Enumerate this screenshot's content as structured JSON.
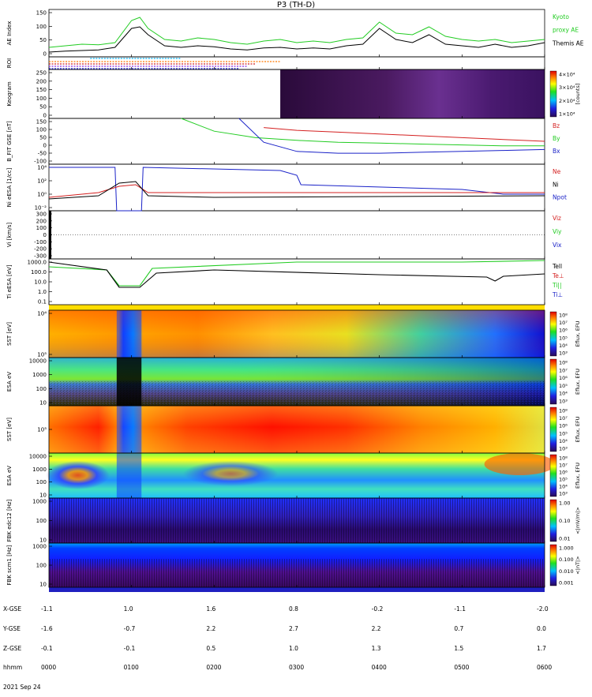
{
  "title": "P3 (TH-D)",
  "colors": {
    "kyoto": "#22cc22",
    "themis": "#000000",
    "red": "#d42020",
    "green": "#22cc22",
    "blue": "#1a22c8"
  },
  "panels": [
    {
      "id": "ae",
      "ylabel": "AE Index",
      "ticks": [
        "150",
        "100",
        "50",
        "0"
      ],
      "legend": [
        {
          "text": "Kyoto",
          "color": "#22cc22"
        },
        {
          "text": "proxy AE",
          "color": "#22cc22"
        },
        {
          "text": "Themis AE",
          "color": "#000000"
        }
      ]
    },
    {
      "id": "roi",
      "ylabel": "ROI",
      "ticks": [],
      "legend": []
    },
    {
      "id": "keogram",
      "ylabel": "Keogram",
      "ticks": [
        "250",
        "200",
        "150",
        "100",
        "50",
        "0"
      ],
      "legend": [],
      "colorbar": {
        "label": "[counts]",
        "ticks": [
          "4×10⁴",
          "3×10⁴",
          "2×10⁴",
          "1×10⁴"
        ]
      }
    },
    {
      "id": "bfield",
      "ylabel": "B_FIT GSE [nT]",
      "ticks": [
        "150",
        "100",
        "50",
        "0",
        "-50",
        "-100"
      ],
      "legend": [
        {
          "text": "Bz",
          "color": "#d42020"
        },
        {
          "text": "By",
          "color": "#22cc22"
        },
        {
          "text": "Bx",
          "color": "#1a22c8"
        }
      ]
    },
    {
      "id": "density",
      "ylabel": "Ni eESA [1/cc]",
      "ticks": [
        "10⁴",
        "10²",
        "10⁰",
        "10⁻²"
      ],
      "legend": [
        {
          "text": "Ne",
          "color": "#d42020"
        },
        {
          "text": "Ni",
          "color": "#000000"
        },
        {
          "text": "Npot",
          "color": "#1a22c8"
        }
      ]
    },
    {
      "id": "velocity",
      "ylabel": "Vi [km/s]",
      "ticks": [
        "300",
        "200",
        "100",
        "0",
        "-100",
        "-200",
        "-300"
      ],
      "legend": [
        {
          "text": "Viz",
          "color": "#d42020"
        },
        {
          "text": "Viy",
          "color": "#22cc22"
        },
        {
          "text": "Vix",
          "color": "#1a22c8"
        }
      ]
    },
    {
      "id": "temp",
      "ylabel": "Ti eESA [eV]",
      "ticks": [
        "1000.0",
        "100.0",
        "10.0",
        "1.0",
        "0.1"
      ],
      "legend": [
        {
          "text": "Tell",
          "color": "#000000"
        },
        {
          "text": "Te⊥",
          "color": "#d42020"
        },
        {
          "text": "Ti||",
          "color": "#22cc22"
        },
        {
          "text": "Ti⊥",
          "color": "#1a22c8"
        }
      ]
    },
    {
      "id": "sst_e",
      "ylabel": "SST [eV]",
      "ticks": [
        "10⁴",
        "10⁵"
      ],
      "legend": [],
      "colorbar": {
        "label": "Eflux, EFU",
        "ticks": [
          "10⁸",
          "10⁷",
          "10⁶",
          "10⁵",
          "10⁴",
          "10³"
        ]
      }
    },
    {
      "id": "esa_e",
      "ylabel": "ESA eV",
      "ticks": [
        "10000",
        "1000",
        "100",
        "10"
      ],
      "legend": [],
      "colorbar": {
        "label": "Eflux, EFU",
        "ticks": [
          "10⁸",
          "10⁷",
          "10⁶",
          "10⁵",
          "10⁴",
          "10³"
        ]
      }
    },
    {
      "id": "sst_i",
      "ylabel": "SST [eV]",
      "ticks": [
        "10⁵"
      ],
      "legend": [],
      "colorbar": {
        "label": "Eflux, EFU",
        "ticks": [
          "10⁸",
          "10⁷",
          "10⁶",
          "10⁵",
          "10⁴",
          "10³"
        ]
      }
    },
    {
      "id": "esa_i",
      "ylabel": "ESA eV",
      "ticks": [
        "10000",
        "1000",
        "100",
        "10"
      ],
      "legend": [],
      "colorbar": {
        "label": "Eflux, EFU",
        "ticks": [
          "10⁸",
          "10⁷",
          "10⁶",
          "10⁵",
          "10⁴",
          "10³"
        ]
      }
    },
    {
      "id": "fbk_e",
      "ylabel": "FBK edc12 [Hz]",
      "ticks": [
        "1000",
        "100",
        "10"
      ],
      "legend": [],
      "colorbar": {
        "label": "<|mV/m|>",
        "ticks": [
          "1.00",
          "0.10",
          "0.01"
        ]
      }
    },
    {
      "id": "fbk_b",
      "ylabel": "FBK scm1 [Hz]",
      "ticks": [
        "1000",
        "100",
        "10"
      ],
      "legend": [],
      "colorbar": {
        "label": "<|nT|>",
        "ticks": [
          "1.000",
          "0.100",
          "0.010",
          "0.001"
        ]
      }
    }
  ],
  "footer": {
    "rows": [
      {
        "label": "X-GSE",
        "values": [
          "-1.1",
          "1.0",
          "1.6",
          "0.8",
          "-0.2",
          "-1.1",
          "-2.0"
        ]
      },
      {
        "label": "Y-GSE",
        "values": [
          "-1.6",
          "-0.7",
          "2.2",
          "2.7",
          "2.2",
          "0.7",
          "0.0"
        ]
      },
      {
        "label": "Z-GSE",
        "values": [
          "-0.1",
          "-0.1",
          "0.5",
          "1.0",
          "1.3",
          "1.5",
          "1.7"
        ]
      },
      {
        "label": "hhmm",
        "values": [
          "0000",
          "0100",
          "0200",
          "0300",
          "0400",
          "0500",
          "0600"
        ]
      }
    ],
    "date": "2021 Sep 24"
  },
  "chart_data": {
    "type": "line",
    "x_label": "hhmm",
    "x_range": [
      "0000",
      "0600"
    ],
    "x_ticks": [
      "0000",
      "0100",
      "0200",
      "0300",
      "0400",
      "0500",
      "0600"
    ],
    "series": [
      {
        "name": "Kyoto proxy AE",
        "panel": "ae",
        "x": [
          0,
          0.2,
          0.4,
          0.6,
          0.8,
          1.0,
          1.1,
          1.2,
          1.4,
          1.6,
          1.8,
          2.0,
          2.2,
          2.4,
          2.6,
          2.8,
          3.0,
          3.2,
          3.4,
          3.6,
          3.8,
          4.0,
          4.2,
          4.4,
          4.6,
          4.8,
          5.0,
          5.2,
          5.4,
          5.6,
          5.8,
          6.0
        ],
        "y": [
          30,
          35,
          40,
          38,
          45,
          115,
          125,
          90,
          55,
          50,
          60,
          55,
          45,
          40,
          50,
          55,
          45,
          50,
          45,
          55,
          60,
          110,
          75,
          70,
          95,
          65,
          55,
          50,
          55,
          45,
          50,
          55
        ]
      },
      {
        "name": "Themis AE",
        "panel": "ae",
        "x": [
          0,
          0.2,
          0.4,
          0.6,
          0.8,
          1.0,
          1.1,
          1.2,
          1.4,
          1.6,
          1.8,
          2.0,
          2.2,
          2.4,
          2.6,
          2.8,
          3.0,
          3.2,
          3.4,
          3.6,
          3.8,
          4.0,
          4.2,
          4.4,
          4.6,
          4.8,
          5.0,
          5.2,
          5.4,
          5.6,
          5.8,
          6.0
        ],
        "y": [
          15,
          18,
          20,
          22,
          30,
          90,
          95,
          70,
          35,
          30,
          35,
          32,
          25,
          22,
          28,
          30,
          25,
          28,
          25,
          35,
          40,
          90,
          55,
          45,
          70,
          40,
          35,
          30,
          40,
          30,
          35,
          45
        ]
      },
      {
        "name": "Bz",
        "panel": "bfield",
        "x": [
          2.6,
          3.0,
          3.5,
          4.0,
          4.5,
          5.0,
          5.5,
          6.0
        ],
        "y": [
          100,
          85,
          75,
          65,
          55,
          45,
          35,
          25
        ]
      },
      {
        "name": "By",
        "panel": "bfield",
        "x": [
          1.6,
          2.0,
          2.5,
          3.0,
          3.5,
          4.0,
          4.5,
          5.0,
          5.5,
          6.0
        ],
        "y": [
          150,
          80,
          45,
          30,
          20,
          15,
          10,
          5,
          0,
          0
        ]
      },
      {
        "name": "Bx",
        "panel": "bfield",
        "x": [
          2.3,
          2.6,
          3.0,
          3.5,
          4.0,
          4.5,
          5.0,
          5.5,
          6.0
        ],
        "y": [
          150,
          20,
          -30,
          -40,
          -40,
          -35,
          -30,
          -25,
          -20
        ]
      }
    ]
  }
}
